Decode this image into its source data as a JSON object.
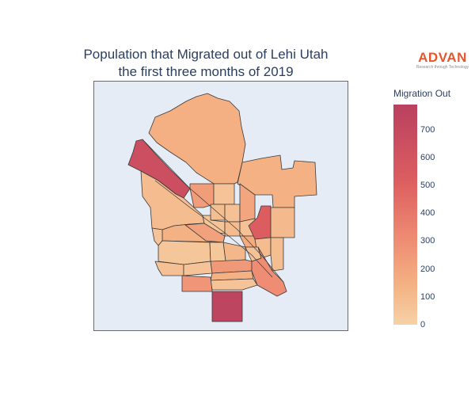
{
  "title": {
    "line1": "Population that Migrated out of Lehi Utah",
    "line2": "the first three months of 2019"
  },
  "logo": {
    "main": "ADVAN",
    "tagline": "Research through Technology"
  },
  "colorbar": {
    "title": "Migration Out",
    "min": 0,
    "max": 790,
    "ticks": [
      "0",
      "100",
      "200",
      "300",
      "400",
      "500",
      "600",
      "700"
    ],
    "colorscale": [
      "#f6d2a7",
      "#f4b183",
      "#ee8a72",
      "#dd5e60",
      "#b9405f"
    ]
  },
  "colors": {
    "background": "#e5ecf6",
    "border": "#3a3a3a"
  },
  "regions": [
    {
      "id": "north-large",
      "value": 210
    },
    {
      "id": "northwest-strip",
      "value": 690
    },
    {
      "id": "west-large",
      "value": 130
    },
    {
      "id": "ne-block",
      "value": 190
    },
    {
      "id": "center-1",
      "value": 300
    },
    {
      "id": "center-2",
      "value": 90
    },
    {
      "id": "center-3",
      "value": 120
    },
    {
      "id": "center-4",
      "value": 110
    },
    {
      "id": "center-5",
      "value": 260
    },
    {
      "id": "center-6",
      "value": 80
    },
    {
      "id": "center-7",
      "value": 140
    },
    {
      "id": "center-8",
      "value": 100
    },
    {
      "id": "center-9",
      "value": 230
    },
    {
      "id": "east-hotspot",
      "value": 600
    },
    {
      "id": "east-1",
      "value": 150
    },
    {
      "id": "east-2",
      "value": 130
    },
    {
      "id": "mid-1",
      "value": 200
    },
    {
      "id": "mid-2",
      "value": 280
    },
    {
      "id": "mid-3",
      "value": 90
    },
    {
      "id": "mid-4",
      "value": 160
    },
    {
      "id": "mid-5",
      "value": 120
    },
    {
      "id": "mid-6",
      "value": 70
    },
    {
      "id": "mid-7",
      "value": 60
    },
    {
      "id": "sw-1",
      "value": 110
    },
    {
      "id": "sw-2",
      "value": 90
    },
    {
      "id": "s-1",
      "value": 320
    },
    {
      "id": "s-2",
      "value": 200
    },
    {
      "id": "s-3",
      "value": 100
    },
    {
      "id": "se-diag",
      "value": 380
    },
    {
      "id": "se-1",
      "value": 90
    },
    {
      "id": "s-4",
      "value": 340
    },
    {
      "id": "south-tip",
      "value": 760
    }
  ]
}
